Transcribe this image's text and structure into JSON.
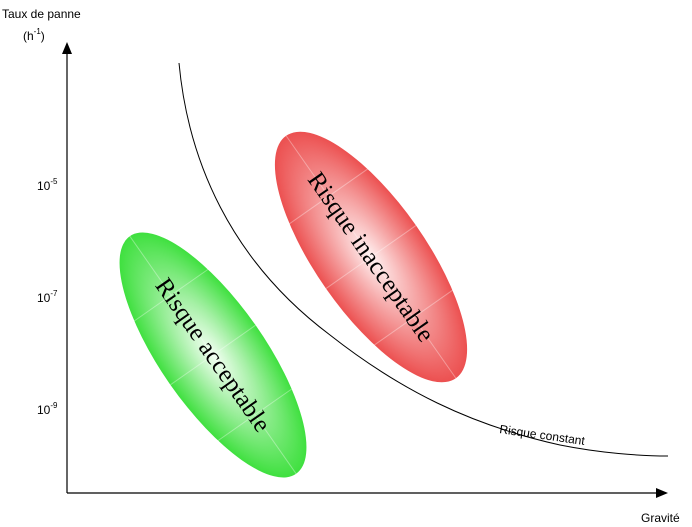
{
  "y_axis": {
    "title": "Taux de panne",
    "unit_base": "(h",
    "unit_exp": "-1",
    "unit_close": ")",
    "ticks": [
      {
        "base": "10",
        "exp": "-5"
      },
      {
        "base": "10",
        "exp": "-7"
      },
      {
        "base": "10",
        "exp": "-9"
      }
    ]
  },
  "x_axis": {
    "title": "Gravité"
  },
  "regions": {
    "acceptable": {
      "label": "Risque acceptable",
      "color": "#37e237"
    },
    "unacceptable": {
      "label": "Risque inacceptable",
      "color": "#ef5757"
    }
  },
  "curve": {
    "label": "Risque constant"
  }
}
